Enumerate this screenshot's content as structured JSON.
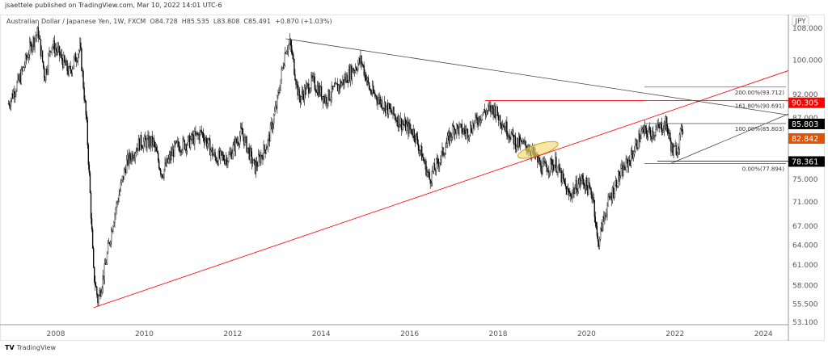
{
  "header": {
    "published": "jsaettele published on TradingView.com, Mar 10, 2022 14:01 UTC-6",
    "legend": "Australian Dollar / Japanese Yen, 1W, FXCM  O84.728  H85.535  L83.808  C85.491  +0.870 (+1.03%)"
  },
  "footer": {
    "brand_icon": "tradingview-logo-icon",
    "brand": "TradingView"
  },
  "chart_data": {
    "type": "candlestick",
    "symbol": "AUDJPY",
    "interval": "1W",
    "currency": "JPY",
    "y_scale": "log",
    "ylim": [
      53.1,
      110
    ],
    "xlim": [
      2006.93,
      2024.6
    ],
    "y_ticks": [
      "108.000",
      "100.000",
      "92.000",
      "87.000",
      "75.000",
      "71.000",
      "67.000",
      "64.000",
      "61.000",
      "58.000",
      "55.500",
      "53.100"
    ],
    "x_ticks": [
      "2008",
      "2010",
      "2012",
      "2014",
      "2016",
      "2018",
      "2020",
      "2022",
      "2024"
    ],
    "price_path": [
      [
        2006.93,
        90
      ],
      [
        2007.2,
        96
      ],
      [
        2007.45,
        104
      ],
      [
        2007.6,
        107
      ],
      [
        2007.75,
        96
      ],
      [
        2007.9,
        104
      ],
      [
        2008.05,
        102
      ],
      [
        2008.3,
        97
      ],
      [
        2008.55,
        103
      ],
      [
        2008.7,
        85
      ],
      [
        2008.85,
        60
      ],
      [
        2008.95,
        56
      ],
      [
        2009.1,
        60
      ],
      [
        2009.3,
        68
      ],
      [
        2009.6,
        78
      ],
      [
        2009.9,
        82
      ],
      [
        2010.2,
        82
      ],
      [
        2010.4,
        76
      ],
      [
        2010.7,
        81
      ],
      [
        2011.0,
        82
      ],
      [
        2011.3,
        84
      ],
      [
        2011.6,
        79
      ],
      [
        2011.9,
        79
      ],
      [
        2012.2,
        84
      ],
      [
        2012.5,
        77
      ],
      [
        2012.8,
        82
      ],
      [
        2013.0,
        90
      ],
      [
        2013.2,
        103
      ],
      [
        2013.3,
        104
      ],
      [
        2013.5,
        91
      ],
      [
        2013.8,
        95
      ],
      [
        2014.1,
        91
      ],
      [
        2014.5,
        95
      ],
      [
        2014.9,
        100
      ],
      [
        2015.1,
        93
      ],
      [
        2015.5,
        89
      ],
      [
        2015.8,
        86
      ],
      [
        2016.1,
        84
      ],
      [
        2016.45,
        75
      ],
      [
        2016.7,
        79
      ],
      [
        2017.0,
        85
      ],
      [
        2017.3,
        84
      ],
      [
        2017.65,
        88
      ],
      [
        2017.9,
        89
      ],
      [
        2018.1,
        86
      ],
      [
        2018.4,
        82
      ],
      [
        2018.7,
        81
      ],
      [
        2019.0,
        77
      ],
      [
        2019.3,
        78
      ],
      [
        2019.6,
        72
      ],
      [
        2019.9,
        75
      ],
      [
        2020.15,
        72
      ],
      [
        2020.25,
        64
      ],
      [
        2020.45,
        70
      ],
      [
        2020.7,
        75
      ],
      [
        2021.0,
        79
      ],
      [
        2021.25,
        84
      ],
      [
        2021.5,
        84
      ],
      [
        2021.8,
        85.8
      ],
      [
        2021.95,
        80
      ],
      [
        2022.05,
        81
      ],
      [
        2022.19,
        85.49
      ]
    ],
    "annotations": {
      "fib_levels": [
        {
          "label": "200.00%(93.712)",
          "value": 93.712
        },
        {
          "label": "161.80%(90.691)",
          "value": 90.691
        },
        {
          "label": "100.00%(85.803)",
          "value": 85.803
        },
        {
          "label": "0.00%(77.894)",
          "value": 77.894
        }
      ],
      "red_trendline": [
        [
          2008.85,
          55.0
        ],
        [
          2024.6,
          97.5
        ]
      ],
      "black_trendline": [
        [
          2013.2,
          105.3
        ],
        [
          2024.6,
          87.6
        ]
      ],
      "support_trendline": [
        [
          2021.9,
          77.9
        ],
        [
          2024.6,
          87.8
        ]
      ],
      "red_level": {
        "from": 2017.7,
        "value": 90.69
      },
      "level_78": {
        "from": 2021.6,
        "value": 78.361
      },
      "highlight_ellipse": {
        "center": [
          2018.9,
          80.5
        ],
        "color": "#f5d76e"
      }
    },
    "price_labels": [
      {
        "text": "90.305",
        "value": 90.305,
        "color": "#ff0000"
      },
      {
        "text": "85.803",
        "value": 85.803,
        "color": "#000000"
      },
      {
        "text": "82.842",
        "value": 82.842,
        "color": "#e65100"
      },
      {
        "text": "78.361",
        "value": 78.361,
        "color": "#000000"
      }
    ],
    "colors": {
      "up": "#ffffff",
      "down": "#000000",
      "red_line": "#ff0000"
    }
  }
}
